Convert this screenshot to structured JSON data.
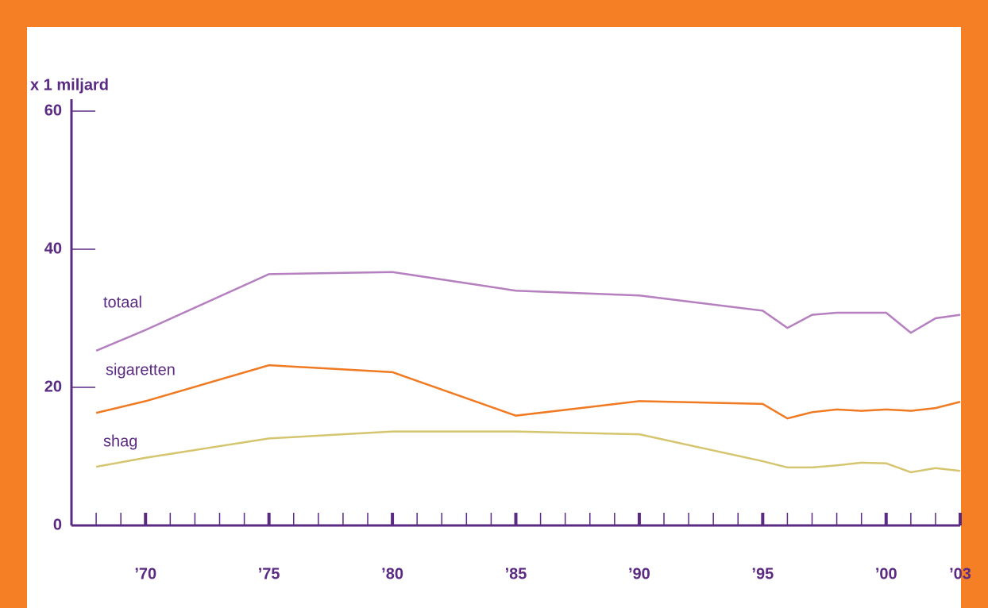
{
  "chart_data": {
    "type": "line",
    "y_label": "x 1 miljard",
    "x": [
      1968,
      1970,
      1975,
      1980,
      1985,
      1990,
      1995,
      1996,
      1997,
      1998,
      1999,
      2000,
      2001,
      2002,
      2003
    ],
    "series": [
      {
        "name": "totaal",
        "color": "#b57fc0",
        "values": [
          25.3,
          28.3,
          36.4,
          36.7,
          34.0,
          33.3,
          31.1,
          28.6,
          30.5,
          30.8,
          30.8,
          30.8,
          27.9,
          30.0,
          30.5
        ]
      },
      {
        "name": "sigaretten",
        "color": "#f07a22",
        "values": [
          16.3,
          18.0,
          23.2,
          22.2,
          15.9,
          18.0,
          17.6,
          15.5,
          16.4,
          16.8,
          16.6,
          16.8,
          16.6,
          17.0,
          17.9
        ]
      },
      {
        "name": "shag",
        "color": "#d4c56e",
        "values": [
          8.5,
          9.8,
          12.6,
          13.6,
          13.6,
          13.2,
          9.3,
          8.4,
          8.4,
          8.7,
          9.1,
          9.0,
          7.7,
          8.3,
          7.9
        ]
      }
    ],
    "xlim": [
      1967,
      2003
    ],
    "xticks": [
      {
        "value": 1970,
        "label": "’70"
      },
      {
        "value": 1975,
        "label": "’75"
      },
      {
        "value": 1980,
        "label": "’80"
      },
      {
        "value": 1985,
        "label": "’85"
      },
      {
        "value": 1990,
        "label": "’90"
      },
      {
        "value": 1995,
        "label": "’95"
      },
      {
        "value": 2000,
        "label": "’00"
      },
      {
        "value": 2003,
        "label": "’03"
      }
    ],
    "xminorticks": [
      1968,
      1969,
      1970,
      1971,
      1972,
      1973,
      1974,
      1975,
      1976,
      1977,
      1978,
      1979,
      1980,
      1981,
      1982,
      1983,
      1984,
      1985,
      1986,
      1987,
      1988,
      1989,
      1990,
      1991,
      1992,
      1993,
      1994,
      1995,
      1996,
      1997,
      1998,
      1999,
      2000,
      2001,
      2002,
      2003
    ],
    "ylim": [
      0,
      60
    ],
    "yticks": [
      0,
      20,
      40,
      60
    ]
  }
}
